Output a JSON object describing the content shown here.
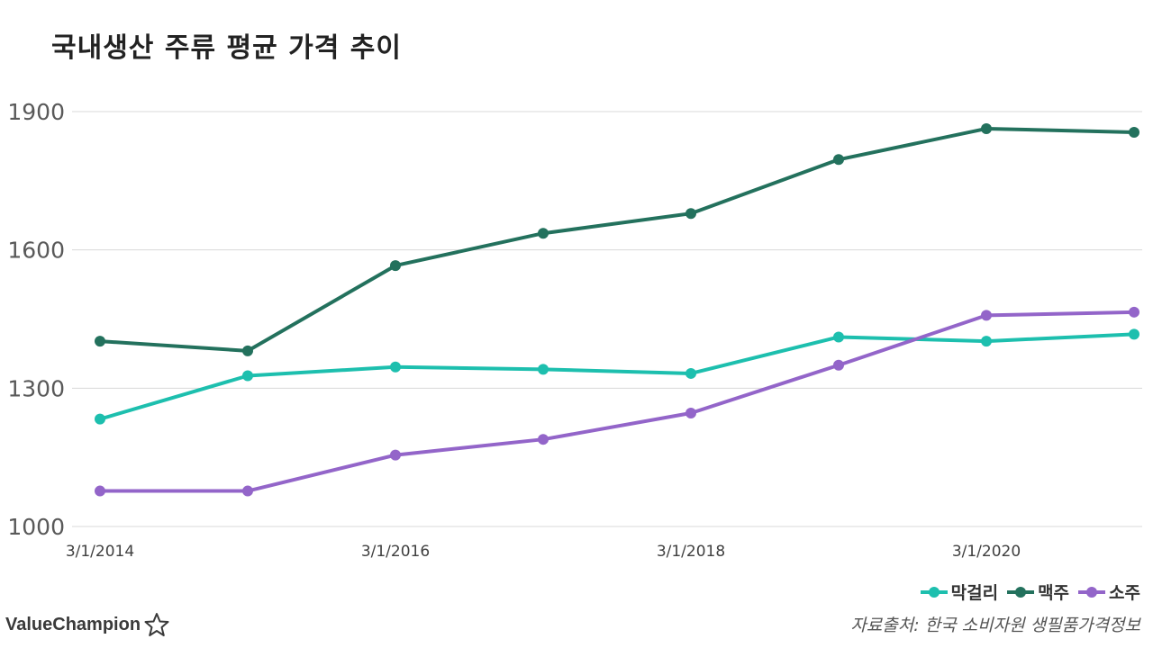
{
  "title": "국내생산 주류 평균 가격 추이",
  "chart_data": {
    "type": "line",
    "x": [
      "3/1/2014",
      "3/1/2015",
      "3/1/2016",
      "3/1/2017",
      "3/1/2018",
      "3/1/2019",
      "3/1/2020",
      "3/1/2021"
    ],
    "x_tick_labels": [
      "3/1/2014",
      "3/1/2016",
      "3/1/2018",
      "3/1/2020"
    ],
    "y_ticks": [
      1000,
      1300,
      1600,
      1900
    ],
    "ylim": [
      1000,
      1900
    ],
    "grid": true,
    "legend_position": "bottom-right",
    "series": [
      {
        "name": "막걸리",
        "color": "#1dbfae",
        "values": [
          1233,
          1327,
          1346,
          1341,
          1332,
          1411,
          1402,
          1417
        ]
      },
      {
        "name": "맥주",
        "color": "#23715d",
        "values": [
          1402,
          1381,
          1566,
          1636,
          1679,
          1796,
          1863,
          1855
        ]
      },
      {
        "name": "소주",
        "color": "#9365c9",
        "values": [
          1077,
          1077,
          1155,
          1189,
          1246,
          1350,
          1458,
          1465
        ]
      }
    ]
  },
  "brand": {
    "name": "ValueChampion",
    "icon": "star-outline-icon"
  },
  "source": "자료출처: 한국 소비자원 생필품가격정보"
}
